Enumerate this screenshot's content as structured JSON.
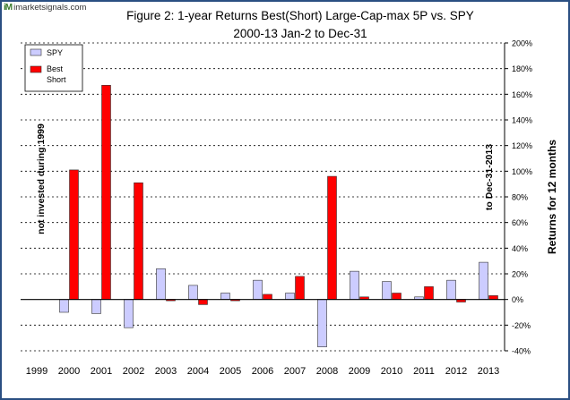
{
  "watermark": {
    "logo_text": "iM",
    "site": "imarketsignals.com"
  },
  "chart_data": {
    "type": "bar",
    "title": "Figure 2:  1-year Returns   Best(Short) Large-Cap-max 5P  vs. SPY",
    "subtitle": "2000-13  Jan-2 to Dec-31",
    "xlabel": "",
    "ylabel": "Returns for 12 months",
    "categories": [
      "1999",
      "2000",
      "2001",
      "2002",
      "2003",
      "2004",
      "2005",
      "2006",
      "2007",
      "2008",
      "2009",
      "2010",
      "2011",
      "2012",
      "2013"
    ],
    "series": [
      {
        "name": "SPY",
        "color": "#ccccff",
        "values": [
          0,
          -10,
          -11,
          -22,
          24,
          11,
          5,
          15,
          5,
          -37,
          22,
          14,
          2,
          15,
          29
        ]
      },
      {
        "name": "Best Short",
        "color": "#ff0000",
        "values": [
          0,
          101,
          167,
          91,
          -1,
          -4,
          -1,
          4,
          18,
          96,
          2,
          5,
          10,
          -2,
          3
        ]
      }
    ],
    "ylim": [
      -40,
      200
    ],
    "ytick_step": 20,
    "ytick_labels": [
      "-40%",
      "-20%",
      "0%",
      "20%",
      "40%",
      "60%",
      "80%",
      "100%",
      "120%",
      "140%",
      "160%",
      "180%",
      "200%"
    ],
    "grid": true,
    "legend_position": "top-left",
    "annotations": [
      {
        "text": "not invested during 1999",
        "near": "2000-bar",
        "orientation": "vertical"
      },
      {
        "text": "to Dec-31-2013",
        "near": "2013-bar",
        "orientation": "vertical"
      }
    ]
  }
}
